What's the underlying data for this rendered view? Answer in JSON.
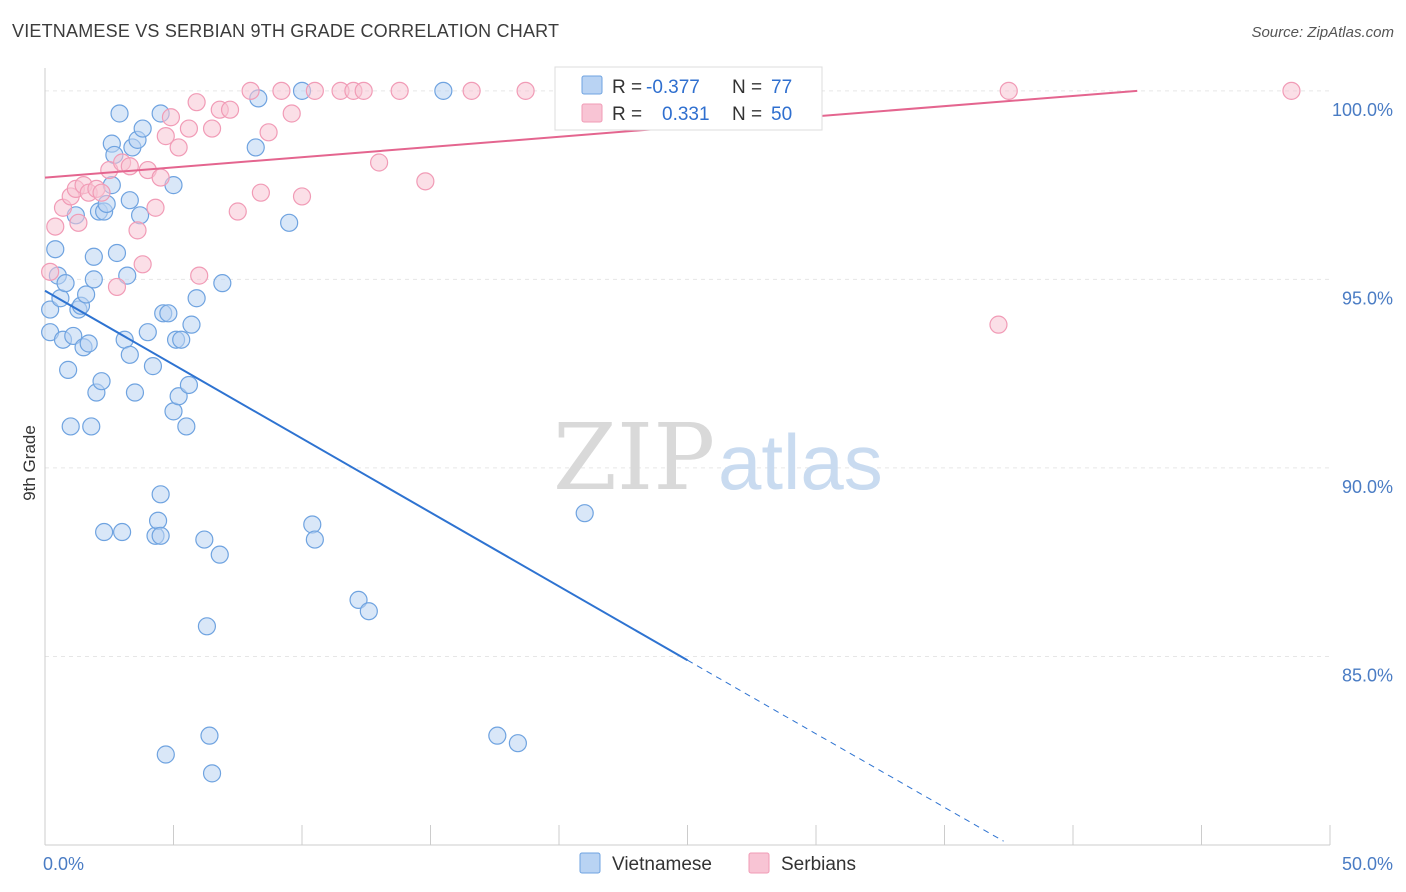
{
  "title": "VIETNAMESE VS SERBIAN 9TH GRADE CORRELATION CHART",
  "source": "Source: ZipAtlas.com",
  "watermark": {
    "part1": "ZIP",
    "part2": "atlas"
  },
  "legend": {
    "r_label": "R =",
    "n_label": "N =",
    "rows": [
      {
        "name": "Vietnamese",
        "r": "-0.377",
        "n": "77",
        "color": "#6fa3e0",
        "fill": "#b9d3f3"
      },
      {
        "name": "Serbians",
        "r": "0.331",
        "n": "50",
        "color": "#f19bb6",
        "fill": "#f8c4d4"
      }
    ]
  },
  "chart_data": {
    "type": "scatter",
    "xlabel": "",
    "ylabel": "9th Grade",
    "xlim": [
      0,
      50
    ],
    "ylim": [
      80,
      100.5
    ],
    "x_tick_labels": [
      {
        "v": 0,
        "label": "0.0%"
      },
      {
        "v": 50,
        "label": "50.0%"
      }
    ],
    "y_tick_labels": [
      {
        "v": 100,
        "label": "100.0%"
      },
      {
        "v": 95,
        "label": "95.0%"
      },
      {
        "v": 90,
        "label": "90.0%"
      },
      {
        "v": 85,
        "label": "85.0%"
      }
    ],
    "x_minor_ticks": [
      0,
      5,
      10,
      15,
      20,
      25,
      30,
      35,
      40,
      45,
      50
    ],
    "series": [
      {
        "name": "Vietnamese",
        "color": "#6fa3e0",
        "trend": {
          "x0": 0,
          "y0": 94.7,
          "x1": 25,
          "y1": 84.9,
          "dash_to_x": 37.3,
          "dash_to_y": 80.1,
          "color": "#2e73d1"
        },
        "points": [
          [
            0.2,
            94.2
          ],
          [
            0.2,
            93.6
          ],
          [
            0.4,
            95.8
          ],
          [
            0.5,
            95.1
          ],
          [
            0.6,
            94.5
          ],
          [
            0.7,
            93.4
          ],
          [
            0.8,
            94.9
          ],
          [
            0.9,
            92.6
          ],
          [
            1.0,
            91.1
          ],
          [
            1.1,
            93.5
          ],
          [
            1.2,
            96.7
          ],
          [
            1.3,
            94.2
          ],
          [
            1.4,
            94.3
          ],
          [
            1.5,
            93.2
          ],
          [
            1.6,
            94.6
          ],
          [
            1.7,
            93.3
          ],
          [
            1.8,
            91.1
          ],
          [
            1.9,
            95.6
          ],
          [
            2.0,
            92.0
          ],
          [
            2.1,
            96.8
          ],
          [
            2.2,
            92.3
          ],
          [
            2.3,
            96.8
          ],
          [
            2.3,
            88.3
          ],
          [
            2.6,
            97.5
          ],
          [
            2.6,
            98.6
          ],
          [
            2.7,
            98.3
          ],
          [
            2.8,
            95.7
          ],
          [
            2.9,
            99.4
          ],
          [
            3.0,
            88.3
          ],
          [
            3.1,
            93.4
          ],
          [
            3.2,
            95.1
          ],
          [
            3.3,
            93.0
          ],
          [
            3.3,
            97.1
          ],
          [
            3.4,
            98.5
          ],
          [
            3.5,
            92.0
          ],
          [
            3.6,
            98.7
          ],
          [
            3.7,
            96.7
          ],
          [
            3.8,
            99.0
          ],
          [
            4.0,
            93.6
          ],
          [
            4.2,
            92.7
          ],
          [
            4.3,
            88.2
          ],
          [
            4.4,
            88.6
          ],
          [
            4.5,
            88.2
          ],
          [
            4.5,
            89.3
          ],
          [
            4.5,
            99.4
          ],
          [
            4.6,
            94.1
          ],
          [
            4.7,
            82.4
          ],
          [
            4.8,
            94.1
          ],
          [
            5.0,
            97.5
          ],
          [
            5.0,
            91.5
          ],
          [
            5.1,
            93.4
          ],
          [
            5.2,
            91.9
          ],
          [
            5.3,
            93.4
          ],
          [
            5.5,
            91.1
          ],
          [
            5.6,
            92.2
          ],
          [
            5.7,
            93.8
          ],
          [
            5.9,
            94.5
          ],
          [
            6.2,
            88.1
          ],
          [
            6.3,
            85.8
          ],
          [
            6.4,
            82.9
          ],
          [
            6.5,
            81.9
          ],
          [
            6.8,
            87.7
          ],
          [
            6.9,
            94.9
          ],
          [
            8.2,
            98.5
          ],
          [
            8.3,
            99.8
          ],
          [
            9.5,
            96.5
          ],
          [
            10.0,
            100.0
          ],
          [
            10.4,
            88.5
          ],
          [
            10.5,
            88.1
          ],
          [
            12.2,
            86.5
          ],
          [
            12.6,
            86.2
          ],
          [
            15.5,
            100.0
          ],
          [
            17.6,
            82.9
          ],
          [
            18.4,
            82.7
          ],
          [
            21.0,
            88.8
          ],
          [
            2.4,
            97.0
          ],
          [
            1.9,
            95.0
          ]
        ]
      },
      {
        "name": "Serbians",
        "color": "#f19bb6",
        "trend": {
          "x0": 0,
          "y0": 97.7,
          "x1": 42.5,
          "y1": 100.0,
          "color": "#e4658f"
        },
        "points": [
          [
            0.2,
            95.2
          ],
          [
            0.4,
            96.4
          ],
          [
            0.7,
            96.9
          ],
          [
            1.0,
            97.2
          ],
          [
            1.2,
            97.4
          ],
          [
            1.5,
            97.5
          ],
          [
            1.7,
            97.3
          ],
          [
            2.0,
            97.4
          ],
          [
            2.2,
            97.3
          ],
          [
            2.5,
            97.9
          ],
          [
            2.8,
            94.8
          ],
          [
            3.0,
            98.1
          ],
          [
            3.3,
            98.0
          ],
          [
            3.6,
            96.3
          ],
          [
            3.8,
            95.4
          ],
          [
            4.0,
            97.9
          ],
          [
            4.3,
            96.9
          ],
          [
            4.5,
            97.7
          ],
          [
            4.7,
            98.8
          ],
          [
            4.9,
            99.3
          ],
          [
            5.2,
            98.5
          ],
          [
            5.6,
            99.0
          ],
          [
            5.9,
            99.7
          ],
          [
            6.0,
            95.1
          ],
          [
            6.5,
            99.0
          ],
          [
            6.8,
            99.5
          ],
          [
            7.2,
            99.5
          ],
          [
            7.5,
            96.8
          ],
          [
            8.0,
            100.0
          ],
          [
            8.4,
            97.3
          ],
          [
            8.7,
            98.9
          ],
          [
            9.2,
            100.0
          ],
          [
            9.6,
            99.4
          ],
          [
            10.0,
            97.2
          ],
          [
            10.5,
            100.0
          ],
          [
            11.5,
            100.0
          ],
          [
            12.0,
            100.0
          ],
          [
            12.4,
            100.0
          ],
          [
            13.0,
            98.1
          ],
          [
            13.8,
            100.0
          ],
          [
            14.8,
            97.6
          ],
          [
            16.6,
            100.0
          ],
          [
            18.7,
            100.0
          ],
          [
            20.3,
            100.0
          ],
          [
            22.8,
            100.0
          ],
          [
            26.0,
            100.0
          ],
          [
            37.1,
            93.8
          ],
          [
            37.5,
            100.0
          ],
          [
            48.5,
            100.0
          ],
          [
            1.3,
            96.5
          ]
        ]
      }
    ]
  }
}
